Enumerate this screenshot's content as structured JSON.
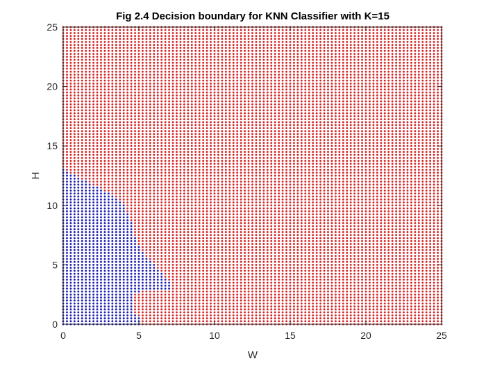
{
  "chart_data": {
    "type": "scatter",
    "title": "Fig 2.4 Decision boundary for KNN Classifier with K=15",
    "xlabel": "W",
    "ylabel": "H",
    "xlim": [
      0,
      25
    ],
    "ylim": [
      0,
      25
    ],
    "xticks": [
      "0",
      "5",
      "10",
      "15",
      "20",
      "25"
    ],
    "yticks": [
      "0",
      "5",
      "10",
      "15",
      "20",
      "25"
    ],
    "grid": false,
    "legend": "none",
    "grid_step": 0.25,
    "series": [
      {
        "color": "#d62728",
        "region": "all points outside the blue region"
      },
      {
        "color": "#1f1fb4",
        "boundary": [
          {
            "y": 0.0,
            "w": 5.0
          },
          {
            "y": 0.5,
            "w": 5.0
          },
          {
            "y": 1.0,
            "w": 4.6
          },
          {
            "y": 1.5,
            "w": 4.5
          },
          {
            "y": 2.0,
            "w": 4.5
          },
          {
            "y": 2.5,
            "w": 4.5
          },
          {
            "y": 2.75,
            "w": 5.2
          },
          {
            "y": 3.0,
            "w": 7.2
          },
          {
            "y": 3.5,
            "w": 7.2
          },
          {
            "y": 4.0,
            "w": 6.7
          },
          {
            "y": 5.0,
            "w": 6.0
          },
          {
            "y": 6.0,
            "w": 5.3
          },
          {
            "y": 7.0,
            "w": 4.8
          },
          {
            "y": 8.0,
            "w": 4.6
          },
          {
            "y": 9.0,
            "w": 4.4
          },
          {
            "y": 10.0,
            "w": 4.0
          },
          {
            "y": 11.0,
            "w": 3.0
          },
          {
            "y": 11.5,
            "w": 2.3
          },
          {
            "y": 12.0,
            "w": 1.5
          },
          {
            "y": 12.5,
            "w": 0.8
          },
          {
            "y": 12.75,
            "w": 0.3
          },
          {
            "y": 13.0,
            "w": 0.0
          }
        ]
      }
    ]
  }
}
